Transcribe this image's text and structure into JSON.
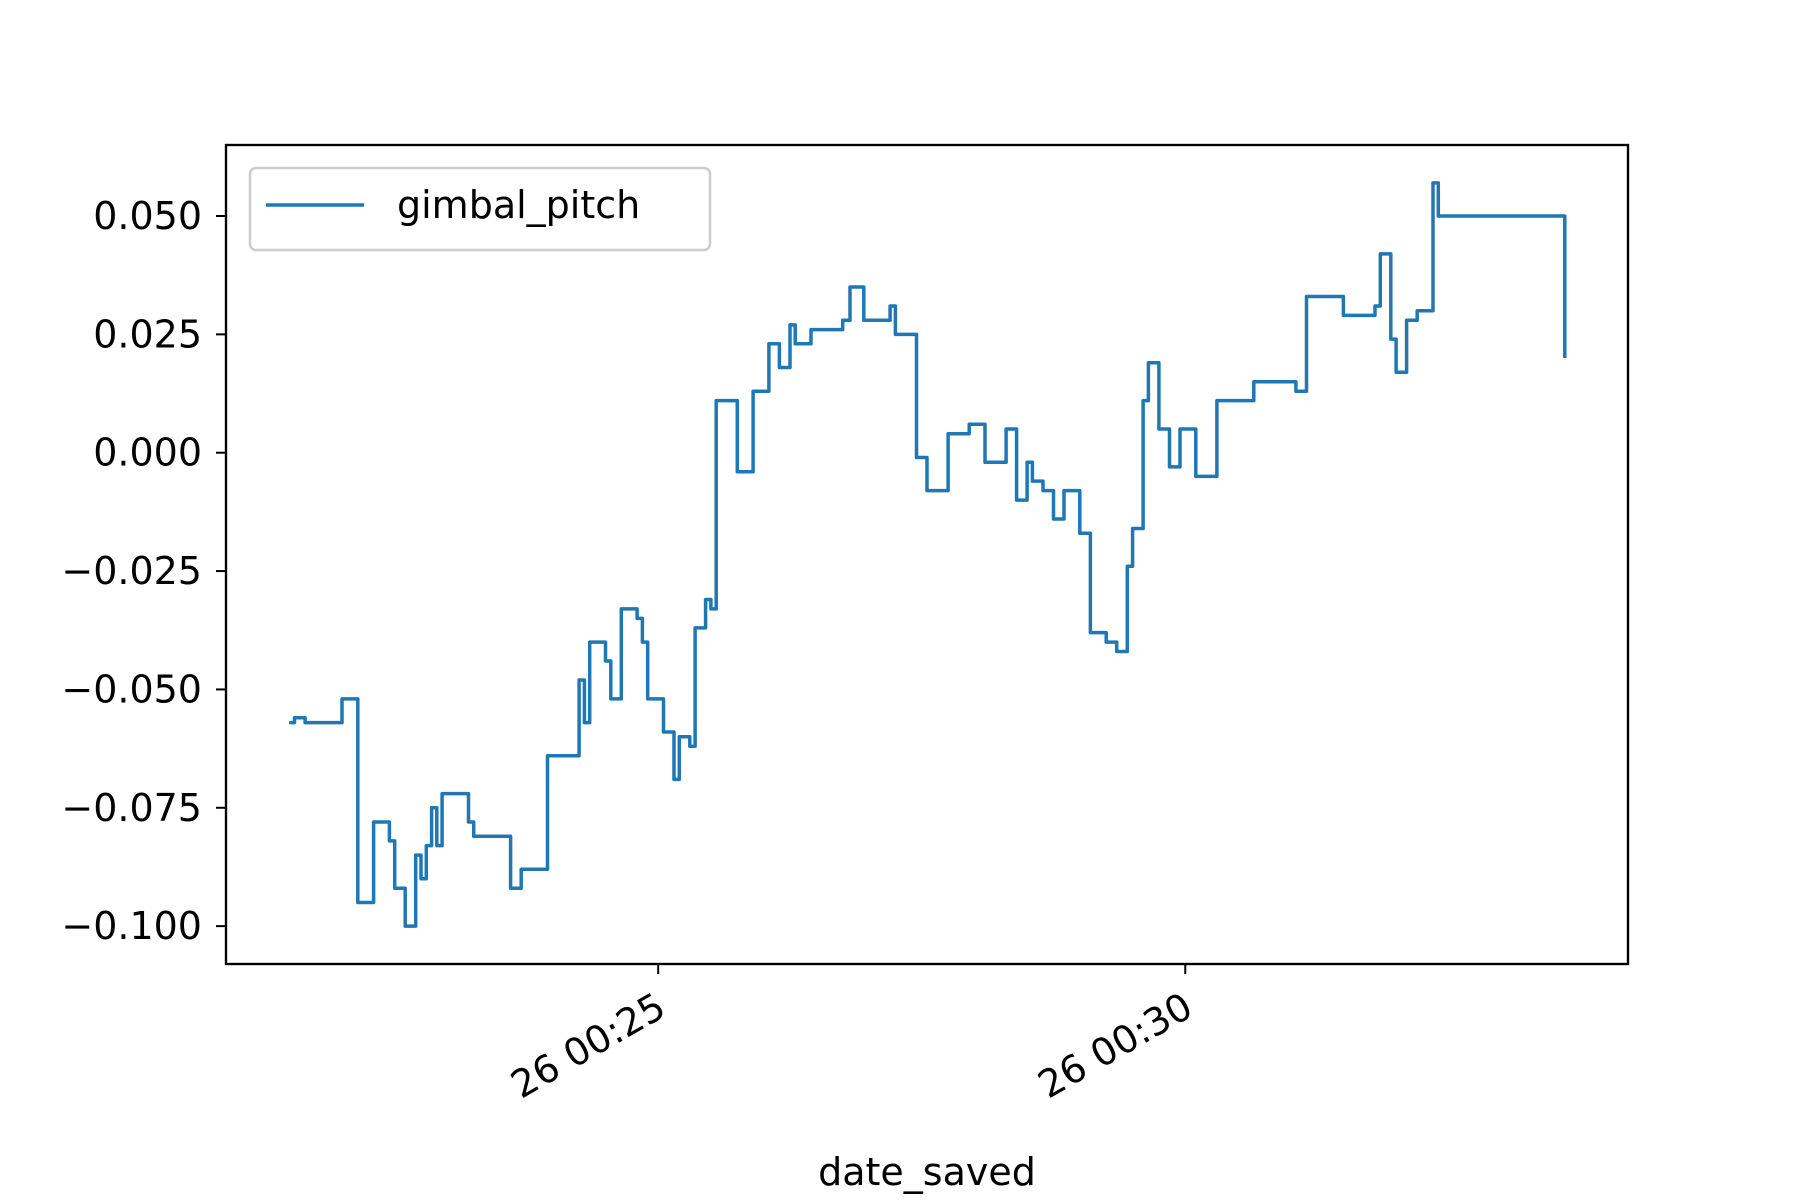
{
  "chart_data": {
    "type": "line",
    "title": "",
    "xlabel": "date_saved",
    "ylabel": "",
    "grid": false,
    "legend_position": "upper-left",
    "x_tick_labels": [
      "26 00:25",
      "26 00:30"
    ],
    "x_tick_values": [
      25.0,
      30.0
    ],
    "y_tick_labels": [
      "0.050",
      "0.025",
      "0.000",
      "−0.025",
      "−0.050",
      "−0.075",
      "−0.100"
    ],
    "y_tick_values": [
      0.05,
      0.025,
      0.0,
      -0.025,
      -0.05,
      -0.075,
      -0.1
    ],
    "xlim": [
      20.9,
      34.2
    ],
    "ylim": [
      -0.108,
      0.065
    ],
    "series": [
      {
        "name": "gimbal_pitch",
        "color": "#1f77b4",
        "x": [
          21.5,
          21.55,
          21.65,
          21.8,
          22.0,
          22.05,
          22.15,
          22.3,
          22.32,
          22.45,
          22.5,
          22.6,
          22.7,
          22.75,
          22.8,
          22.85,
          22.9,
          22.95,
          23.0,
          23.05,
          23.1,
          23.15,
          23.2,
          23.25,
          23.45,
          23.6,
          23.65,
          23.7,
          23.95,
          24.0,
          24.15,
          24.25,
          24.3,
          24.35,
          24.5,
          24.55,
          24.65,
          24.75,
          24.8,
          24.85,
          24.9,
          24.95,
          25.05,
          25.15,
          25.2,
          25.3,
          25.35,
          25.45,
          25.5,
          25.55,
          25.65,
          25.75,
          25.85,
          25.9,
          26.05,
          26.15,
          26.25,
          26.3,
          26.4,
          26.45,
          26.55,
          26.65,
          26.75,
          26.82,
          26.95,
          27.05,
          27.2,
          27.25,
          27.35,
          27.45,
          27.55,
          27.7,
          27.75,
          27.85,
          27.95,
          28.1,
          28.15,
          28.3,
          28.4,
          28.5,
          28.55,
          28.65,
          28.75,
          28.85,
          29.0,
          29.1,
          29.25,
          29.35,
          29.45,
          29.5,
          29.6,
          29.65,
          29.75,
          29.85,
          29.95,
          30.1,
          30.3,
          30.65,
          31.05,
          31.15,
          31.5,
          31.6,
          31.8,
          31.85,
          31.95,
          32.0,
          32.1,
          32.2,
          32.3,
          32.35,
          32.4,
          33.6
        ],
        "y": [
          -0.057,
          -0.056,
          -0.057,
          -0.057,
          -0.052,
          -0.052,
          -0.095,
          -0.078,
          -0.078,
          -0.082,
          -0.092,
          -0.1,
          -0.085,
          -0.09,
          -0.083,
          -0.075,
          -0.083,
          -0.072,
          -0.072,
          -0.072,
          -0.072,
          -0.072,
          -0.078,
          -0.081,
          -0.081,
          -0.092,
          -0.092,
          -0.088,
          -0.064,
          -0.064,
          -0.064,
          -0.048,
          -0.057,
          -0.04,
          -0.044,
          -0.052,
          -0.033,
          -0.033,
          -0.035,
          -0.04,
          -0.052,
          -0.052,
          -0.059,
          -0.069,
          -0.06,
          -0.062,
          -0.037,
          -0.031,
          -0.033,
          0.011,
          0.011,
          -0.004,
          -0.004,
          0.013,
          0.023,
          0.018,
          0.027,
          0.023,
          0.023,
          0.026,
          0.026,
          0.026,
          0.028,
          0.035,
          0.028,
          0.028,
          0.031,
          0.025,
          0.025,
          -0.001,
          -0.008,
          -0.008,
          0.004,
          0.004,
          0.006,
          -0.002,
          -0.002,
          0.005,
          -0.01,
          -0.002,
          -0.006,
          -0.008,
          -0.014,
          -0.008,
          -0.017,
          -0.038,
          -0.04,
          -0.042,
          -0.024,
          -0.016,
          0.011,
          0.019,
          0.005,
          -0.003,
          0.005,
          -0.005,
          0.011,
          0.015,
          0.013,
          0.033,
          0.029,
          0.029,
          0.031,
          0.042,
          0.024,
          0.017,
          0.028,
          0.03,
          0.03,
          0.057,
          0.05,
          0.02
        ]
      }
    ]
  }
}
